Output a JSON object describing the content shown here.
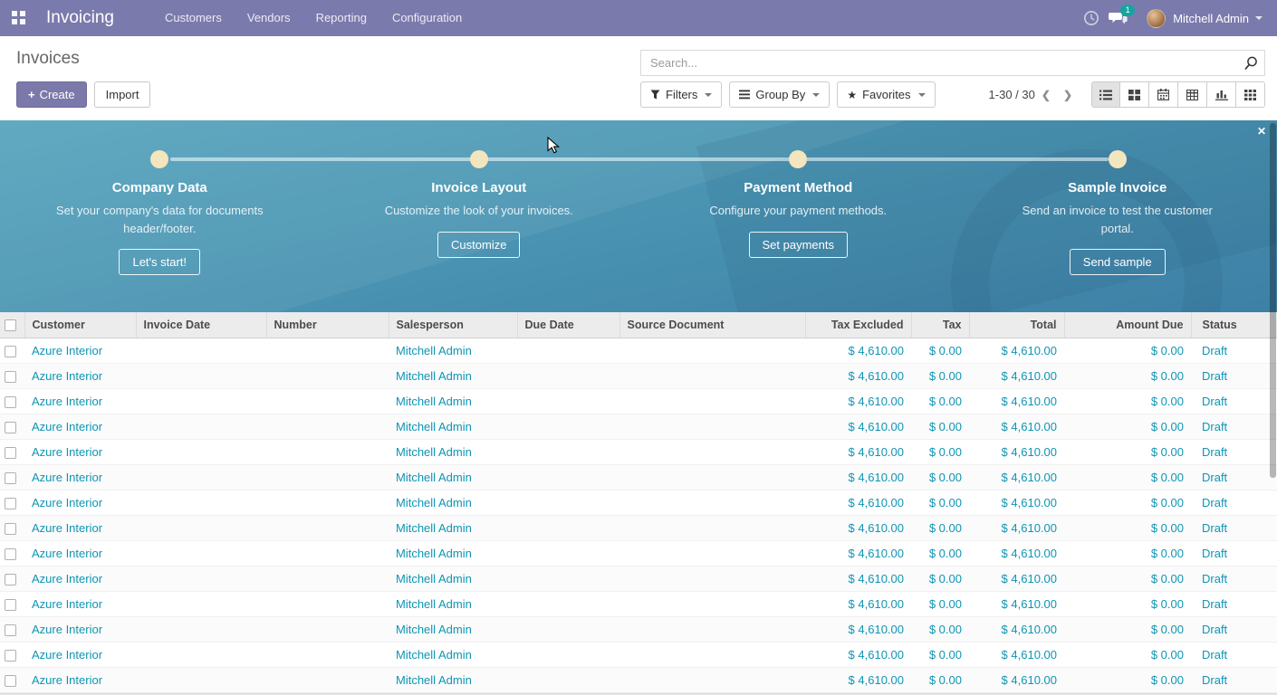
{
  "navbar": {
    "app_title": "Invoicing",
    "menu_items": [
      "Customers",
      "Vendors",
      "Reporting",
      "Configuration"
    ],
    "message_badge": "1",
    "user_name": "Mitchell Admin"
  },
  "control_panel": {
    "title": "Invoices",
    "create_label": "Create",
    "import_label": "Import",
    "search_placeholder": "Search...",
    "filters_label": "Filters",
    "group_by_label": "Group By",
    "favorites_label": "Favorites",
    "pager_text": "1-30 / 30"
  },
  "icons": {
    "plus": "+",
    "star": "★",
    "chevron_left": "❮",
    "chevron_right": "❯",
    "close": "✕"
  },
  "onboarding": {
    "steps": [
      {
        "title": "Company Data",
        "description": "Set your company's data for documents header/footer.",
        "button": "Let's start!"
      },
      {
        "title": "Invoice Layout",
        "description": "Customize the look of your invoices.",
        "button": "Customize"
      },
      {
        "title": "Payment Method",
        "description": "Configure your payment methods.",
        "button": "Set payments"
      },
      {
        "title": "Sample Invoice",
        "description": "Send an invoice to test the customer portal.",
        "button": "Send sample"
      }
    ]
  },
  "table": {
    "columns": [
      "Customer",
      "Invoice Date",
      "Number",
      "Salesperson",
      "Due Date",
      "Source Document",
      "Tax Excluded",
      "Tax",
      "Total",
      "Amount Due",
      "Status"
    ],
    "rows": [
      {
        "customer": "Azure Interior",
        "invoice_date": "",
        "number": "",
        "salesperson": "Mitchell Admin",
        "due_date": "",
        "source_document": "",
        "tax_excluded": "$ 4,610.00",
        "tax": "$ 0.00",
        "total": "$ 4,610.00",
        "amount_due": "$ 0.00",
        "status": "Draft"
      },
      {
        "customer": "Azure Interior",
        "invoice_date": "",
        "number": "",
        "salesperson": "Mitchell Admin",
        "due_date": "",
        "source_document": "",
        "tax_excluded": "$ 4,610.00",
        "tax": "$ 0.00",
        "total": "$ 4,610.00",
        "amount_due": "$ 0.00",
        "status": "Draft"
      },
      {
        "customer": "Azure Interior",
        "invoice_date": "",
        "number": "",
        "salesperson": "Mitchell Admin",
        "due_date": "",
        "source_document": "",
        "tax_excluded": "$ 4,610.00",
        "tax": "$ 0.00",
        "total": "$ 4,610.00",
        "amount_due": "$ 0.00",
        "status": "Draft"
      },
      {
        "customer": "Azure Interior",
        "invoice_date": "",
        "number": "",
        "salesperson": "Mitchell Admin",
        "due_date": "",
        "source_document": "",
        "tax_excluded": "$ 4,610.00",
        "tax": "$ 0.00",
        "total": "$ 4,610.00",
        "amount_due": "$ 0.00",
        "status": "Draft"
      },
      {
        "customer": "Azure Interior",
        "invoice_date": "",
        "number": "",
        "salesperson": "Mitchell Admin",
        "due_date": "",
        "source_document": "",
        "tax_excluded": "$ 4,610.00",
        "tax": "$ 0.00",
        "total": "$ 4,610.00",
        "amount_due": "$ 0.00",
        "status": "Draft"
      },
      {
        "customer": "Azure Interior",
        "invoice_date": "",
        "number": "",
        "salesperson": "Mitchell Admin",
        "due_date": "",
        "source_document": "",
        "tax_excluded": "$ 4,610.00",
        "tax": "$ 0.00",
        "total": "$ 4,610.00",
        "amount_due": "$ 0.00",
        "status": "Draft"
      },
      {
        "customer": "Azure Interior",
        "invoice_date": "",
        "number": "",
        "salesperson": "Mitchell Admin",
        "due_date": "",
        "source_document": "",
        "tax_excluded": "$ 4,610.00",
        "tax": "$ 0.00",
        "total": "$ 4,610.00",
        "amount_due": "$ 0.00",
        "status": "Draft"
      },
      {
        "customer": "Azure Interior",
        "invoice_date": "",
        "number": "",
        "salesperson": "Mitchell Admin",
        "due_date": "",
        "source_document": "",
        "tax_excluded": "$ 4,610.00",
        "tax": "$ 0.00",
        "total": "$ 4,610.00",
        "amount_due": "$ 0.00",
        "status": "Draft"
      },
      {
        "customer": "Azure Interior",
        "invoice_date": "",
        "number": "",
        "salesperson": "Mitchell Admin",
        "due_date": "",
        "source_document": "",
        "tax_excluded": "$ 4,610.00",
        "tax": "$ 0.00",
        "total": "$ 4,610.00",
        "amount_due": "$ 0.00",
        "status": "Draft"
      },
      {
        "customer": "Azure Interior",
        "invoice_date": "",
        "number": "",
        "salesperson": "Mitchell Admin",
        "due_date": "",
        "source_document": "",
        "tax_excluded": "$ 4,610.00",
        "tax": "$ 0.00",
        "total": "$ 4,610.00",
        "amount_due": "$ 0.00",
        "status": "Draft"
      },
      {
        "customer": "Azure Interior",
        "invoice_date": "",
        "number": "",
        "salesperson": "Mitchell Admin",
        "due_date": "",
        "source_document": "",
        "tax_excluded": "$ 4,610.00",
        "tax": "$ 0.00",
        "total": "$ 4,610.00",
        "amount_due": "$ 0.00",
        "status": "Draft"
      },
      {
        "customer": "Azure Interior",
        "invoice_date": "",
        "number": "",
        "salesperson": "Mitchell Admin",
        "due_date": "",
        "source_document": "",
        "tax_excluded": "$ 4,610.00",
        "tax": "$ 0.00",
        "total": "$ 4,610.00",
        "amount_due": "$ 0.00",
        "status": "Draft"
      },
      {
        "customer": "Azure Interior",
        "invoice_date": "",
        "number": "",
        "salesperson": "Mitchell Admin",
        "due_date": "",
        "source_document": "",
        "tax_excluded": "$ 4,610.00",
        "tax": "$ 0.00",
        "total": "$ 4,610.00",
        "amount_due": "$ 0.00",
        "status": "Draft"
      },
      {
        "customer": "Azure Interior",
        "invoice_date": "",
        "number": "",
        "salesperson": "Mitchell Admin",
        "due_date": "",
        "source_document": "",
        "tax_excluded": "$ 4,610.00",
        "tax": "$ 0.00",
        "total": "$ 4,610.00",
        "amount_due": "$ 0.00",
        "status": "Draft"
      }
    ]
  },
  "colors": {
    "navbar": "#7b7aac",
    "badge": "#13a5a0",
    "link_text": "#0e95b5",
    "banner_top": "#57a5bd",
    "banner_bottom": "#3d80a6",
    "step_dot": "#f3e5bd",
    "header_bg": "#ececec"
  }
}
